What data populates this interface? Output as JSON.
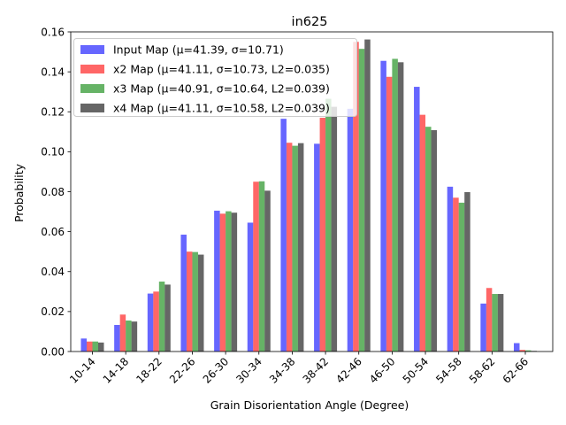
{
  "chart_data": {
    "type": "bar",
    "title": "in625",
    "xlabel": "Grain Disorientation Angle (Degree)",
    "ylabel": "Probability",
    "ylim": [
      0,
      0.16
    ],
    "yticks": [
      "0.00",
      "0.02",
      "0.04",
      "0.06",
      "0.08",
      "0.10",
      "0.12",
      "0.14",
      "0.16"
    ],
    "ytick_values": [
      0,
      0.02,
      0.04,
      0.06,
      0.08,
      0.1,
      0.12,
      0.14,
      0.16
    ],
    "grid": false,
    "legend_position": "top-left",
    "categories": [
      "10-14",
      "14-18",
      "18-22",
      "22-26",
      "26-30",
      "30-34",
      "34-38",
      "38-42",
      "42-46",
      "46-50",
      "50-54",
      "54-58",
      "58-62",
      "62-66"
    ],
    "series": [
      {
        "name": "Input Map (μ=41.39, σ=10.71)",
        "color": "#0000ff",
        "values": [
          0.0065,
          0.0133,
          0.029,
          0.0585,
          0.0705,
          0.0645,
          0.1165,
          0.104,
          0.1215,
          0.1455,
          0.1325,
          0.0825,
          0.024,
          0.0042
        ]
      },
      {
        "name": "x2 Map (μ=41.11, σ=10.73, L2=0.035)",
        "color": "#ff0000",
        "values": [
          0.005,
          0.0185,
          0.03,
          0.05,
          0.069,
          0.085,
          0.1045,
          0.117,
          0.155,
          0.1375,
          0.1185,
          0.077,
          0.0318,
          0.0008
        ]
      },
      {
        "name": "x3 Map (μ=40.91, σ=10.64, L2=0.039)",
        "color": "#008000",
        "values": [
          0.005,
          0.0155,
          0.035,
          0.0498,
          0.0702,
          0.0852,
          0.103,
          0.1265,
          0.1515,
          0.1465,
          0.1125,
          0.0745,
          0.0288,
          0.0006
        ]
      },
      {
        "name": "x4 Map (μ=41.11, σ=10.58, L2=0.039)",
        "color": "#000000",
        "values": [
          0.0045,
          0.015,
          0.0335,
          0.0485,
          0.0695,
          0.0805,
          0.1043,
          0.1225,
          0.1562,
          0.1448,
          0.1108,
          0.0798,
          0.0288,
          0.0003
        ]
      }
    ]
  }
}
